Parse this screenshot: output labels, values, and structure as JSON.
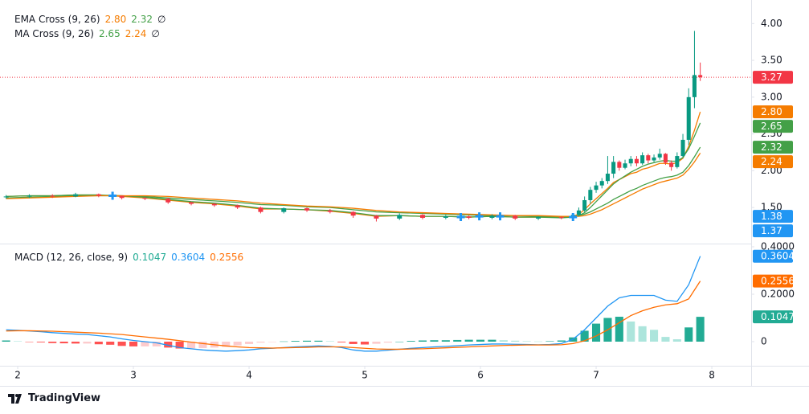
{
  "chart_data": [
    {
      "type": "candlestick",
      "x": [
        1.9,
        2.1,
        2.3,
        2.5,
        2.7,
        2.9,
        3.1,
        3.3,
        3.5,
        3.7,
        3.9,
        4.1,
        4.3,
        4.5,
        4.7,
        4.9,
        5.1,
        5.3,
        5.5,
        5.7,
        5.9,
        6.1,
        6.3,
        6.5,
        6.7,
        6.8,
        6.85,
        6.9,
        6.95,
        7.0,
        7.05,
        7.1,
        7.15,
        7.2,
        7.25,
        7.3,
        7.35,
        7.4,
        7.45,
        7.5,
        7.55,
        7.6,
        7.65,
        7.7,
        7.75,
        7.8,
        7.85,
        7.9
      ],
      "open": [
        1.64,
        1.65,
        1.66,
        1.65,
        1.68,
        1.66,
        1.63,
        1.62,
        1.57,
        1.55,
        1.53,
        1.5,
        1.44,
        1.49,
        1.46,
        1.44,
        1.39,
        1.35,
        1.4,
        1.36,
        1.38,
        1.36,
        1.39,
        1.35,
        1.37,
        1.36,
        1.4,
        1.46,
        1.6,
        1.74,
        1.8,
        1.86,
        1.96,
        2.12,
        2.04,
        2.1,
        2.16,
        2.1,
        2.21,
        2.14,
        2.18,
        2.23,
        2.11,
        2.05,
        2.2,
        2.42,
        3.0,
        3.3
      ],
      "high": [
        1.67,
        1.68,
        1.68,
        1.7,
        1.69,
        1.66,
        1.64,
        1.63,
        1.58,
        1.56,
        1.54,
        1.51,
        1.5,
        1.5,
        1.48,
        1.45,
        1.4,
        1.42,
        1.41,
        1.4,
        1.39,
        1.41,
        1.4,
        1.38,
        1.38,
        1.42,
        1.5,
        1.65,
        1.78,
        1.85,
        1.9,
        2.2,
        2.2,
        2.14,
        2.15,
        2.2,
        2.2,
        2.25,
        2.23,
        2.22,
        2.3,
        2.24,
        2.14,
        2.25,
        2.5,
        3.12,
        3.9,
        3.47
      ],
      "low": [
        1.62,
        1.63,
        1.63,
        1.64,
        1.64,
        1.61,
        1.6,
        1.55,
        1.53,
        1.51,
        1.48,
        1.42,
        1.42,
        1.44,
        1.42,
        1.36,
        1.31,
        1.33,
        1.34,
        1.34,
        1.34,
        1.34,
        1.33,
        1.33,
        1.34,
        1.34,
        1.38,
        1.44,
        1.55,
        1.7,
        1.76,
        1.82,
        1.9,
        2.0,
        2.02,
        2.06,
        2.06,
        2.08,
        2.1,
        2.12,
        2.15,
        2.08,
        2.0,
        2.03,
        2.18,
        2.35,
        2.85,
        3.22
      ],
      "close": [
        1.65,
        1.66,
        1.65,
        1.68,
        1.66,
        1.63,
        1.62,
        1.57,
        1.55,
        1.53,
        1.5,
        1.44,
        1.49,
        1.46,
        1.44,
        1.39,
        1.35,
        1.4,
        1.36,
        1.38,
        1.36,
        1.39,
        1.35,
        1.37,
        1.36,
        1.4,
        1.46,
        1.6,
        1.74,
        1.8,
        1.86,
        1.96,
        2.12,
        2.04,
        2.1,
        2.16,
        2.1,
        2.21,
        2.14,
        2.18,
        2.23,
        2.11,
        2.05,
        2.2,
        2.42,
        3.0,
        3.3,
        3.27
      ],
      "up_color": "#089981",
      "down_color": "#f23645",
      "xlim": [
        1.847,
        8.34
      ],
      "ylim": [
        1.01,
        4.32
      ],
      "yticks": [
        {
          "value": 1.5,
          "label": "1.50"
        },
        {
          "value": 2,
          "label": "2.00"
        },
        {
          "value": 2.5,
          "label": "2.50"
        },
        {
          "value": 3,
          "label": "3.00"
        },
        {
          "value": 3.5,
          "label": "3.50"
        },
        {
          "value": 4,
          "label": "4.00"
        }
      ],
      "last_price": {
        "value": 3.27,
        "label": "3.27",
        "color": "#f23645"
      },
      "indicators": [
        {
          "label": "EMA Cross (9, 26)",
          "icon": "∅",
          "series": [
            {
              "color": "#f57c00",
              "values": [
                1.65,
                1.66,
                1.66,
                1.67,
                1.67,
                1.65,
                1.63,
                1.6,
                1.57,
                1.55,
                1.52,
                1.48,
                1.48,
                1.47,
                1.45,
                1.42,
                1.38,
                1.39,
                1.38,
                1.38,
                1.37,
                1.38,
                1.37,
                1.37,
                1.37,
                1.38,
                1.41,
                1.47,
                1.55,
                1.62,
                1.69,
                1.76,
                1.84,
                1.88,
                1.92,
                1.96,
                1.98,
                2.02,
                2.04,
                2.07,
                2.1,
                2.1,
                2.09,
                2.11,
                2.17,
                2.33,
                2.55,
                2.8
              ],
              "last": {
                "value": 2.8,
                "label": "2.80"
              }
            },
            {
              "color": "#43a047",
              "values": [
                1.63,
                1.64,
                1.65,
                1.66,
                1.66,
                1.66,
                1.65,
                1.63,
                1.61,
                1.59,
                1.57,
                1.54,
                1.53,
                1.51,
                1.5,
                1.47,
                1.44,
                1.43,
                1.42,
                1.41,
                1.4,
                1.39,
                1.39,
                1.38,
                1.38,
                1.38,
                1.39,
                1.41,
                1.44,
                1.48,
                1.52,
                1.56,
                1.61,
                1.65,
                1.69,
                1.73,
                1.76,
                1.8,
                1.83,
                1.86,
                1.89,
                1.91,
                1.92,
                1.94,
                1.98,
                2.07,
                2.19,
                2.32
              ],
              "last": {
                "value": 2.32,
                "label": "2.32"
              }
            }
          ],
          "crosses": {
            "color": "#2196f3",
            "x": [
              2.82,
              5.83,
              6.17
            ],
            "values": [
              1.66,
              1.37,
              1.38
            ],
            "last": {
              "value": 1.38,
              "label": "1.38"
            }
          }
        },
        {
          "label": "MA Cross (9, 26)",
          "icon": "∅",
          "series": [
            {
              "color": "#43a047",
              "values": [
                1.65,
                1.66,
                1.66,
                1.67,
                1.67,
                1.66,
                1.64,
                1.61,
                1.58,
                1.56,
                1.53,
                1.49,
                1.48,
                1.47,
                1.46,
                1.43,
                1.39,
                1.39,
                1.38,
                1.38,
                1.37,
                1.38,
                1.37,
                1.37,
                1.36,
                1.37,
                1.39,
                1.43,
                1.5,
                1.58,
                1.66,
                1.74,
                1.82,
                1.88,
                1.93,
                1.98,
                2.02,
                2.06,
                2.09,
                2.11,
                2.13,
                2.14,
                2.13,
                2.13,
                2.18,
                2.3,
                2.47,
                2.65
              ],
              "last": {
                "value": 2.65,
                "label": "2.65"
              }
            },
            {
              "color": "#f57c00",
              "values": [
                1.62,
                1.63,
                1.64,
                1.65,
                1.66,
                1.66,
                1.66,
                1.65,
                1.63,
                1.61,
                1.59,
                1.56,
                1.54,
                1.52,
                1.51,
                1.49,
                1.46,
                1.44,
                1.43,
                1.42,
                1.41,
                1.4,
                1.39,
                1.39,
                1.38,
                1.38,
                1.38,
                1.39,
                1.41,
                1.44,
                1.47,
                1.51,
                1.55,
                1.59,
                1.63,
                1.67,
                1.71,
                1.75,
                1.78,
                1.81,
                1.84,
                1.86,
                1.88,
                1.9,
                1.94,
                2.02,
                2.12,
                2.24
              ],
              "last": {
                "value": 2.24,
                "label": "2.24"
              }
            }
          ],
          "crosses": {
            "color": "#2196f3",
            "x": [
              5.99,
              6.8
            ],
            "values": [
              1.38,
              1.37
            ],
            "last": {
              "value": 1.37,
              "label": "1.37"
            }
          }
        }
      ]
    },
    {
      "type": "macd",
      "label": "MACD (12, 26, close, 9)",
      "x": [
        1.9,
        2.0,
        2.1,
        2.2,
        2.3,
        2.4,
        2.5,
        2.6,
        2.7,
        2.8,
        2.9,
        3.0,
        3.1,
        3.2,
        3.3,
        3.4,
        3.5,
        3.6,
        3.7,
        3.8,
        3.9,
        4.0,
        4.1,
        4.2,
        4.3,
        4.4,
        4.5,
        4.6,
        4.7,
        4.8,
        4.9,
        5.0,
        5.1,
        5.2,
        5.3,
        5.4,
        5.5,
        5.6,
        5.7,
        5.8,
        5.9,
        6.0,
        6.1,
        6.2,
        6.3,
        6.4,
        6.5,
        6.6,
        6.7,
        6.8,
        6.9,
        7.0,
        7.1,
        7.2,
        7.3,
        7.4,
        7.5,
        7.6,
        7.7,
        7.8,
        7.9
      ],
      "histogram": {
        "color": "#22ab94",
        "values": [
          0.005,
          0.002,
          -0.001,
          -0.003,
          -0.006,
          -0.007,
          -0.008,
          -0.008,
          -0.011,
          -0.013,
          -0.018,
          -0.02,
          -0.02,
          -0.02,
          -0.025,
          -0.029,
          -0.028,
          -0.027,
          -0.025,
          -0.022,
          -0.016,
          -0.01,
          -0.004,
          -0.001,
          0.001,
          0.003,
          0.004,
          0.004,
          0.002,
          -0.003,
          -0.01,
          -0.012,
          -0.009,
          -0.004,
          0,
          0.003,
          0.005,
          0.006,
          0.006,
          0.007,
          0.008,
          0.008,
          0.008,
          0.006,
          0.004,
          0.002,
          0.001,
          0.002,
          0.005,
          0.018,
          0.046,
          0.076,
          0.1,
          0.105,
          0.085,
          0.065,
          0.05,
          0.02,
          0.01,
          0.06,
          0.1047
        ],
        "colors": {
          "grow_above": "#22ab94",
          "fall_above": "#ace5dc",
          "grow_below": "#fccbcd",
          "fall_below": "#ff5252"
        },
        "last": {
          "value": 0.1047,
          "label": "0.1047"
        }
      },
      "series": [
        {
          "color": "#2196f3",
          "values": [
            0.05,
            0.048,
            0.045,
            0.042,
            0.038,
            0.035,
            0.032,
            0.03,
            0.025,
            0.02,
            0.012,
            0.005,
            0,
            -0.005,
            -0.015,
            -0.025,
            -0.03,
            -0.035,
            -0.038,
            -0.04,
            -0.038,
            -0.035,
            -0.03,
            -0.028,
            -0.025,
            -0.022,
            -0.02,
            -0.018,
            -0.02,
            -0.025,
            -0.035,
            -0.04,
            -0.04,
            -0.036,
            -0.032,
            -0.028,
            -0.025,
            -0.022,
            -0.02,
            -0.017,
            -0.014,
            -0.012,
            -0.01,
            -0.01,
            -0.011,
            -0.012,
            -0.013,
            -0.012,
            -0.008,
            0.01,
            0.05,
            0.1,
            0.15,
            0.185,
            0.195,
            0.195,
            0.195,
            0.175,
            0.17,
            0.24,
            0.3604
          ],
          "last": {
            "value": 0.3604,
            "label": "0.3604"
          }
        },
        {
          "color": "#ff6d00",
          "values": [
            0.045,
            0.046,
            0.046,
            0.045,
            0.044,
            0.042,
            0.04,
            0.038,
            0.036,
            0.033,
            0.03,
            0.025,
            0.02,
            0.015,
            0.01,
            0.004,
            -0.002,
            -0.008,
            -0.013,
            -0.018,
            -0.022,
            -0.025,
            -0.026,
            -0.027,
            -0.026,
            -0.025,
            -0.024,
            -0.022,
            -0.022,
            -0.022,
            -0.025,
            -0.028,
            -0.031,
            -0.032,
            -0.032,
            -0.031,
            -0.03,
            -0.028,
            -0.026,
            -0.024,
            -0.022,
            -0.02,
            -0.018,
            -0.016,
            -0.015,
            -0.014,
            -0.014,
            -0.014,
            -0.013,
            -0.008,
            0.004,
            0.024,
            0.05,
            0.08,
            0.11,
            0.13,
            0.145,
            0.155,
            0.16,
            0.18,
            0.2556
          ],
          "last": {
            "value": 0.2556,
            "label": "0.2556"
          }
        }
      ],
      "xlim": [
        1.847,
        8.34
      ],
      "ylim": [
        -0.1017,
        0.4136
      ],
      "yticks": [
        0,
        {
          "value": 0.2,
          "label": "0.2000"
        },
        {
          "value": 0.4,
          "label": "0.4000"
        }
      ],
      "xticks": [
        2,
        3,
        4,
        5,
        6,
        7,
        8
      ]
    }
  ],
  "footer": {
    "brand": "TradingView"
  }
}
